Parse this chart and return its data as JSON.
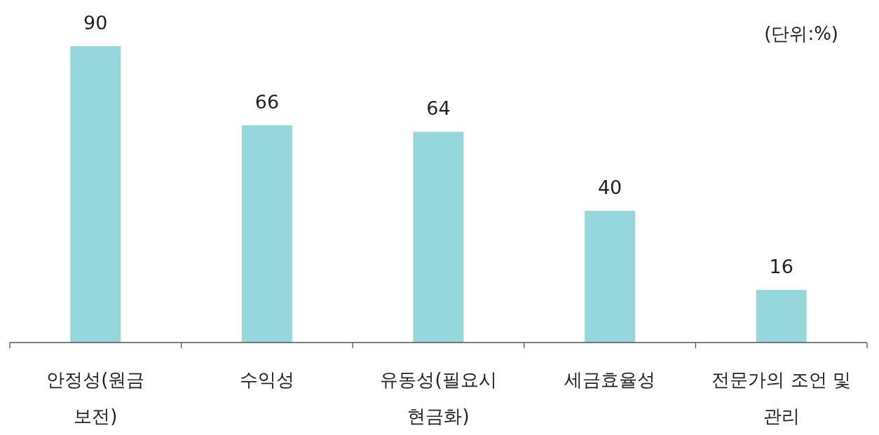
{
  "chart_data": {
    "type": "bar",
    "categories": [
      "안정성(원금 보전)",
      "수익성",
      "유동성(필요시 현금화)",
      "세금효율성",
      "전문가의 조언 및 관리"
    ],
    "values": [
      90,
      66,
      64,
      40,
      16
    ],
    "color": "#96d7dc",
    "data_labels": true,
    "annotations": [
      "(단위:%)"
    ]
  }
}
